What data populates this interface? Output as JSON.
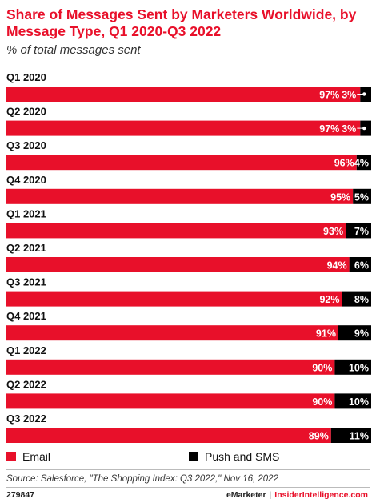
{
  "title": "Share of Messages Sent by Marketers Worldwide, by Message Type, Q1 2020-Q3 2022",
  "subtitle": "% of total messages sent",
  "colors": {
    "email": "#e8102a",
    "push": "#000000"
  },
  "chart_data": {
    "type": "bar",
    "orientation": "horizontal-stacked",
    "categories": [
      "Q1 2020",
      "Q2 2020",
      "Q3 2020",
      "Q4 2020",
      "Q1 2021",
      "Q2 2021",
      "Q3 2021",
      "Q4 2021",
      "Q1 2022",
      "Q2 2022",
      "Q3 2022"
    ],
    "series": [
      {
        "name": "Email",
        "values": [
          97,
          97,
          96,
          95,
          93,
          94,
          92,
          91,
          90,
          90,
          89
        ],
        "labels": [
          "97%",
          "97%",
          "96%",
          "95%",
          "93%",
          "94%",
          "92%",
          "91%",
          "90%",
          "90%",
          "89%"
        ]
      },
      {
        "name": "Push and SMS",
        "values": [
          3,
          3,
          4,
          5,
          7,
          6,
          8,
          9,
          10,
          10,
          11
        ],
        "labels": [
          "3%",
          "3%",
          "4%",
          "5%",
          "7%",
          "6%",
          "8%",
          "9%",
          "10%",
          "10%",
          "11%"
        ]
      }
    ],
    "xlim": [
      0,
      100
    ],
    "legend": "bottom",
    "grid": false
  },
  "legend": {
    "email": "Email",
    "push": "Push and SMS"
  },
  "source": "Source: Salesforce, \"The Shopping Index: Q3 2022,\" Nov 16, 2022",
  "footer": {
    "id": "279847",
    "brand1": "eMarketer",
    "sep": "|",
    "brand2": "InsiderIntelligence.com"
  }
}
